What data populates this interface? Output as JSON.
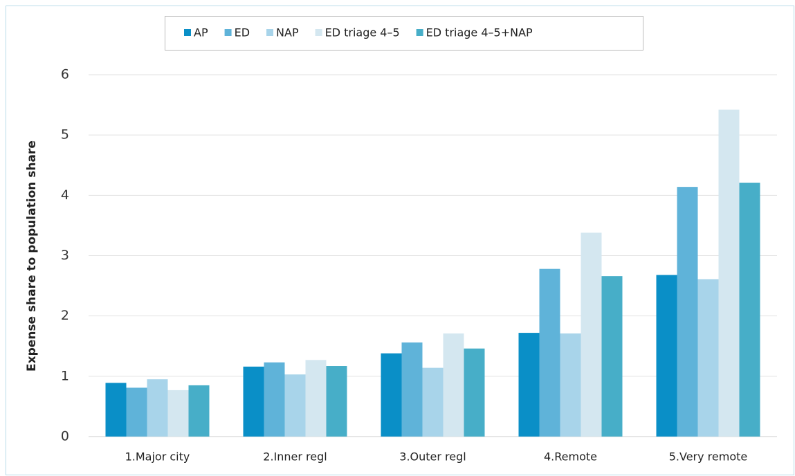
{
  "chart_data": {
    "type": "bar",
    "ylabel": "Expense share to population share",
    "categories": [
      "1.Major city",
      "2.Inner regl",
      "3.Outer regl",
      "4.Remote",
      "5.Very remote"
    ],
    "series": [
      {
        "name": "AP",
        "color": "#0a8fc7",
        "values": [
          0.89,
          1.16,
          1.38,
          1.72,
          2.68
        ]
      },
      {
        "name": "ED",
        "color": "#5fb3d9",
        "values": [
          0.81,
          1.23,
          1.56,
          2.78,
          4.14
        ]
      },
      {
        "name": "NAP",
        "color": "#a8d4ea",
        "values": [
          0.95,
          1.03,
          1.14,
          1.71,
          2.61
        ]
      },
      {
        "name": "ED triage 4–5",
        "color": "#d4e7f0",
        "values": [
          0.77,
          1.27,
          1.71,
          3.38,
          5.42
        ]
      },
      {
        "name": "ED triage 4–5+NAP",
        "color": "#47aec8",
        "values": [
          0.85,
          1.17,
          1.46,
          2.66,
          4.21
        ]
      }
    ],
    "ylim": [
      0,
      6
    ],
    "yticks": [
      0,
      1,
      2,
      3,
      4,
      5,
      6
    ],
    "grid": true,
    "legend": "top"
  }
}
